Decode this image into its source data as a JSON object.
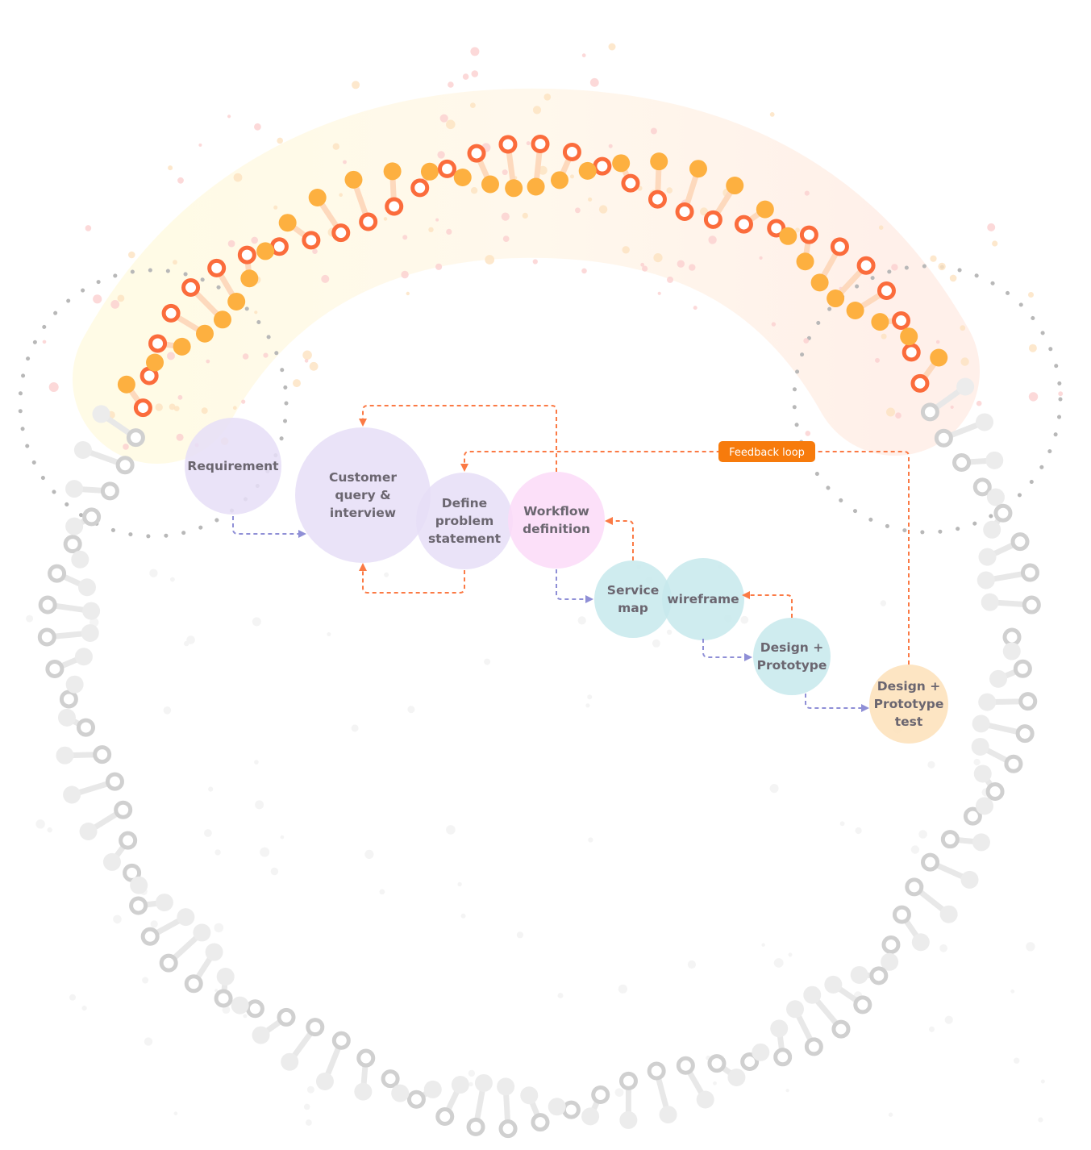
{
  "colors": {
    "lavender": "#e6def7",
    "pink": "#fcdaf8",
    "teal": "#c7e9ec",
    "peach": "#fde0b9",
    "orange_arrow": "#fb7a45",
    "blue_arrow": "#8f8fd6",
    "feedback_badge": "#f77b0c",
    "helix_orange": "#fdb040",
    "helix_red": "#fb6c3c",
    "helix_gray": "#dcdcdc"
  },
  "nodes": [
    {
      "id": "requirement",
      "lines": [
        "Requirement"
      ],
      "color": "lavender"
    },
    {
      "id": "customer-query",
      "lines": [
        "Customer",
        "query &",
        "interview"
      ],
      "color": "lavender"
    },
    {
      "id": "define-problem",
      "lines": [
        "Define",
        "problem",
        "statement"
      ],
      "color": "lavender"
    },
    {
      "id": "workflow",
      "lines": [
        "Workflow",
        "definition"
      ],
      "color": "pink"
    },
    {
      "id": "service-map",
      "lines": [
        "Service",
        "map"
      ],
      "color": "teal"
    },
    {
      "id": "wireframe",
      "lines": [
        "wireframe"
      ],
      "color": "teal"
    },
    {
      "id": "design-prototype",
      "lines": [
        "Design +",
        "Prototype"
      ],
      "color": "teal"
    },
    {
      "id": "design-prototype-test",
      "lines": [
        "Design +",
        "Prototype",
        "test"
      ],
      "color": "peach"
    }
  ],
  "feedback": {
    "label": "Feedback loop"
  }
}
